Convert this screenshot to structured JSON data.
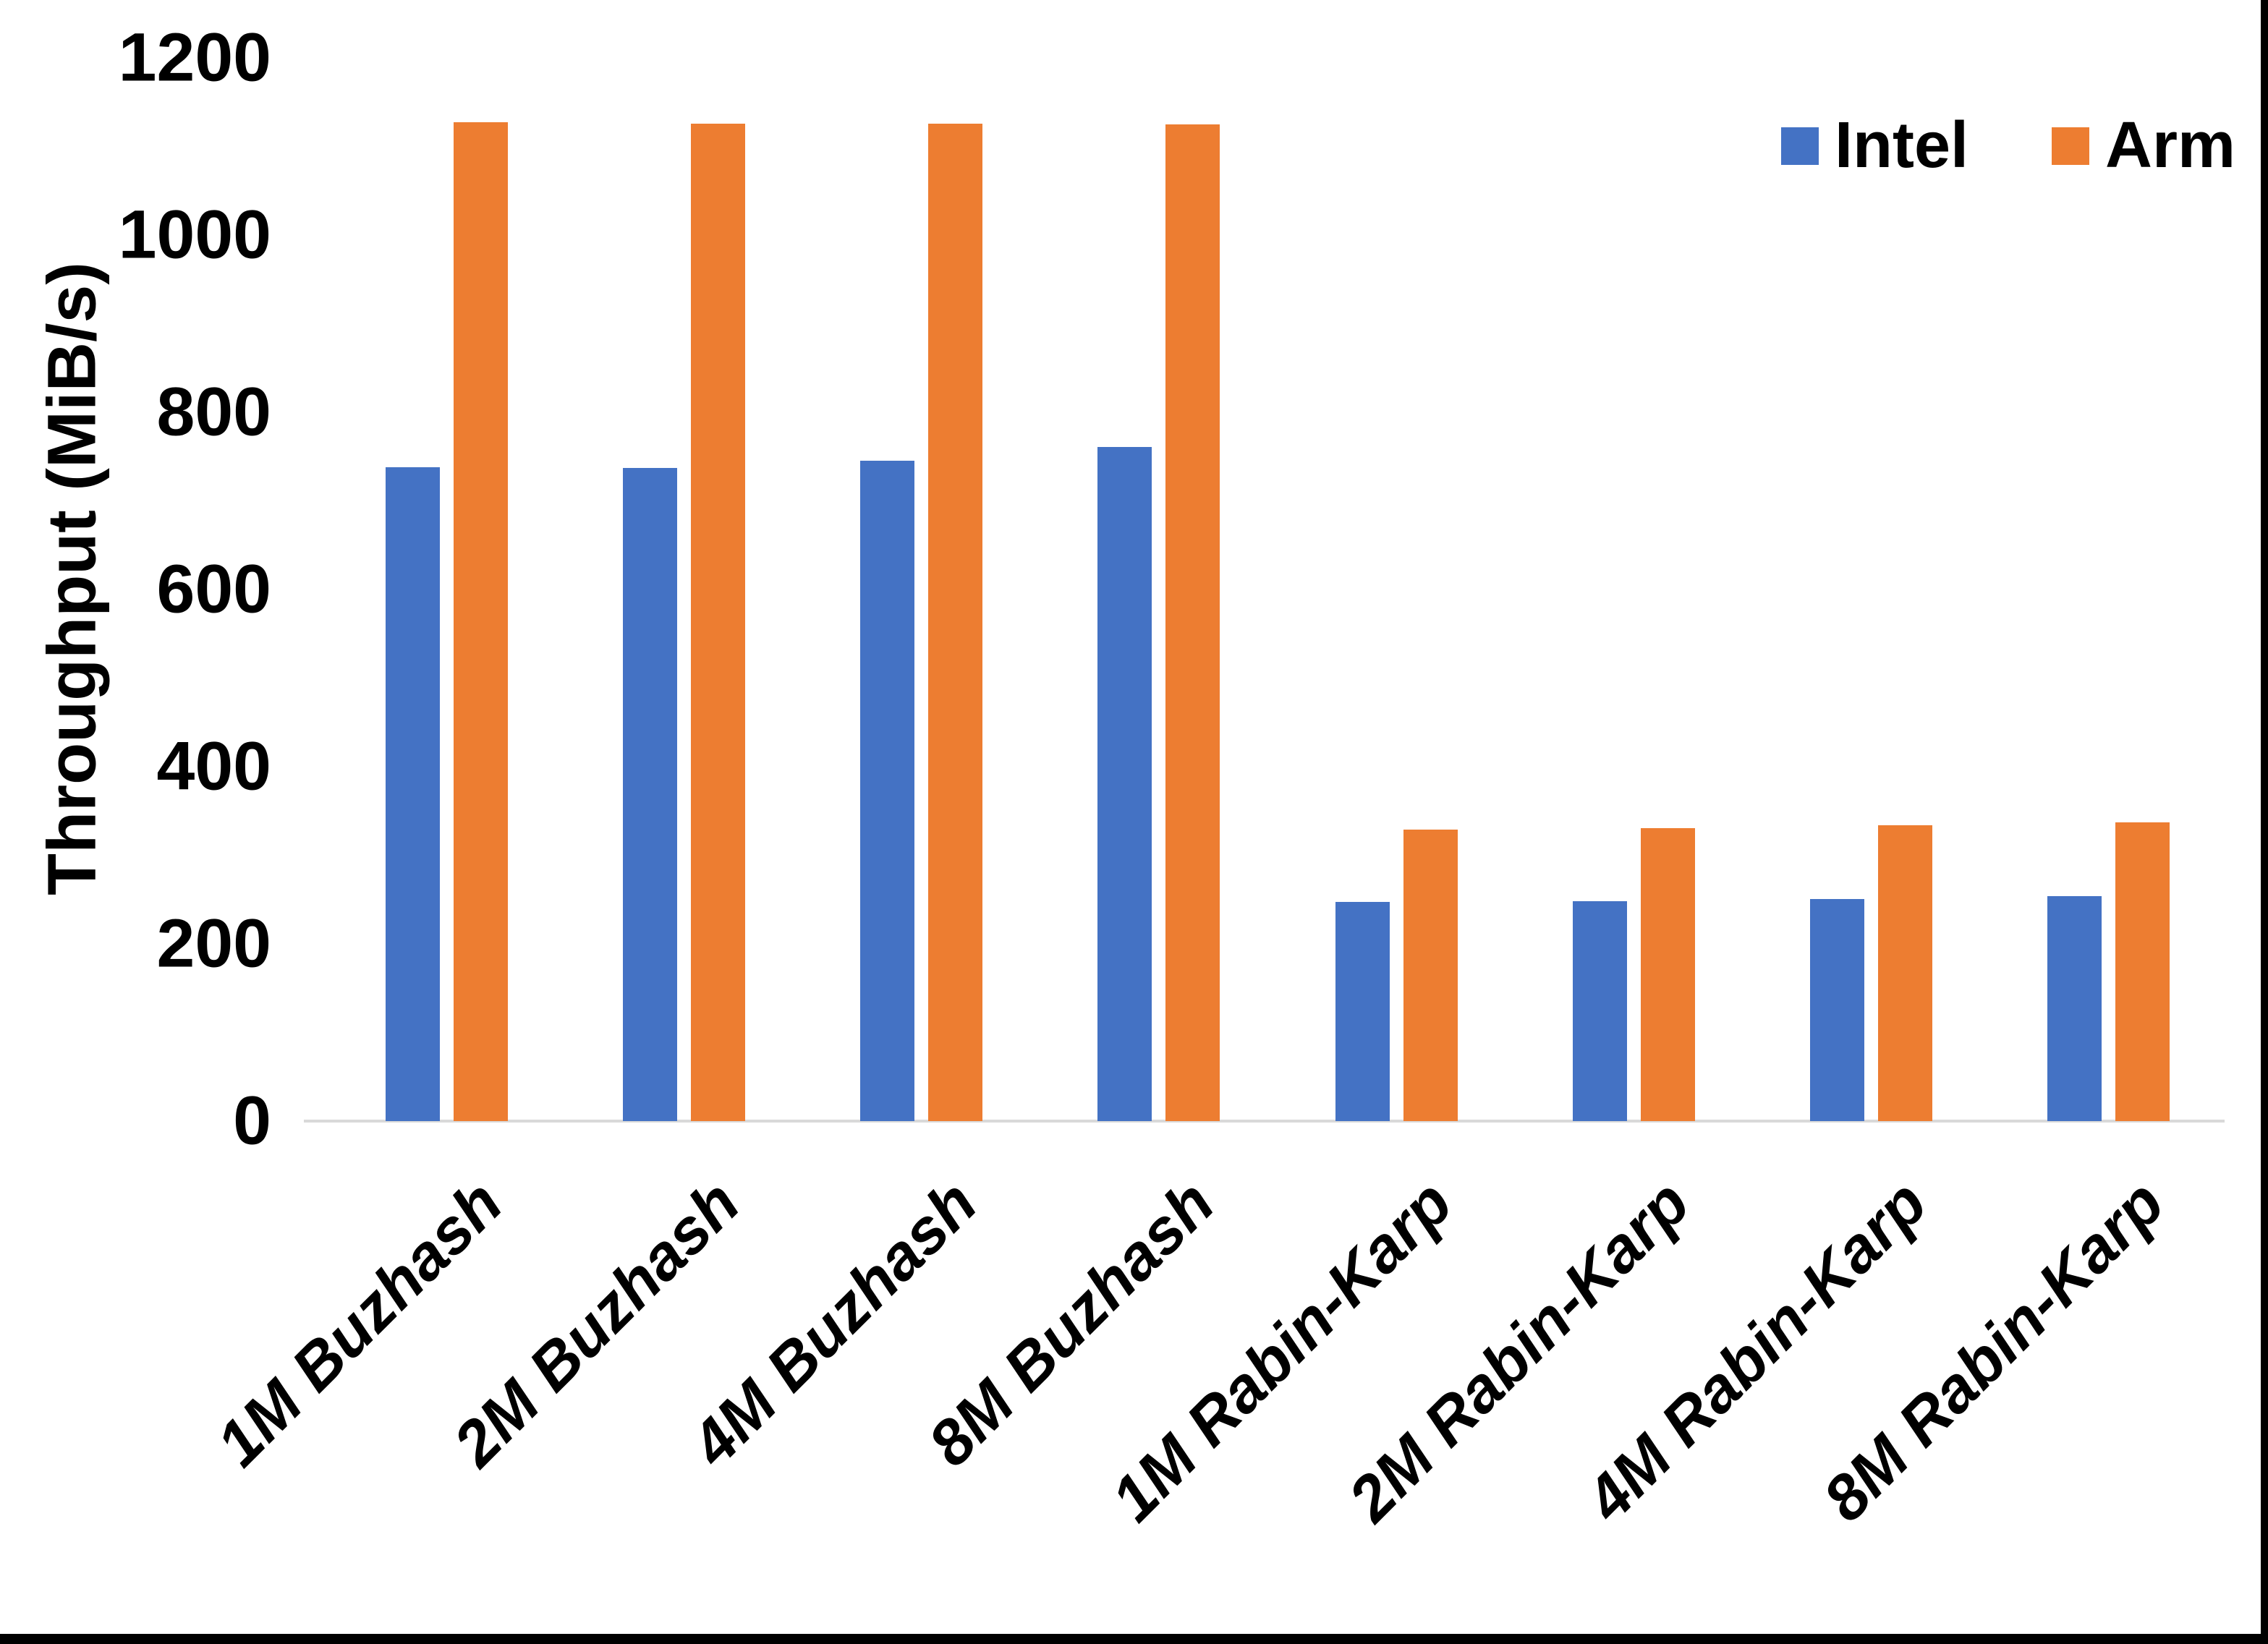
{
  "chart_data": {
    "type": "bar",
    "title": "",
    "xlabel": "",
    "ylabel": "Throughput (MiB/s)",
    "ylim": [
      0,
      1200
    ],
    "y_tick_step": 200,
    "y_tick_labels": [
      "0",
      "200",
      "400",
      "600",
      "800",
      "1000",
      "1200"
    ],
    "grid": false,
    "legend_position": "top-right",
    "categories": [
      "1M Buzhash",
      "2M Buzhash",
      "4M Buzhash",
      "8M Buzhash",
      "1M Rabin-Karp",
      "2M Rabin-Karp",
      "4M Rabin-Karp",
      "8M Rabin-Karp"
    ],
    "series": [
      {
        "name": "Intel",
        "color": "#4472C4",
        "values": [
          738,
          737,
          745,
          761,
          247,
          248,
          251,
          254
        ]
      },
      {
        "name": "Arm",
        "color": "#ED7D31",
        "values": [
          1127,
          1126,
          1126,
          1125,
          329,
          331,
          334,
          337
        ]
      }
    ]
  },
  "colors": {
    "axis_line": "#d9d9d9",
    "text": "#000000",
    "background": "#ffffff",
    "border": "#000000"
  }
}
